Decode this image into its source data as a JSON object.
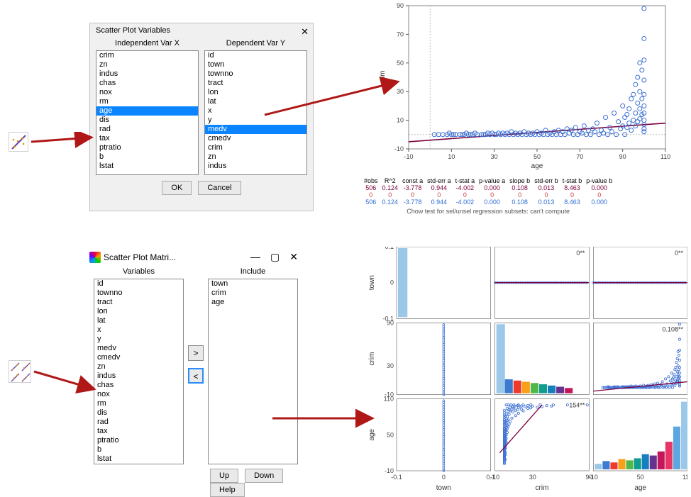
{
  "dialog1": {
    "title": "Scatter Plot Variables",
    "colX_label": "Independent Var X",
    "colY_label": "Dependent Var Y",
    "listX": [
      "crim",
      "zn",
      "indus",
      "chas",
      "nox",
      "rm",
      "age",
      "dis",
      "rad",
      "tax",
      "ptratio",
      "b",
      "lstat"
    ],
    "listX_selected": "age",
    "listY": [
      "id",
      "town",
      "townno",
      "tract",
      "lon",
      "lat",
      "x",
      "y",
      "medv",
      "cmedv",
      "crim",
      "zn",
      "indus"
    ],
    "listY_selected": "medv",
    "ok": "OK",
    "cancel": "Cancel"
  },
  "dialog2": {
    "title": "Scatter Plot Matri...",
    "colVars_label": "Variables",
    "colIncl_label": "Include",
    "listVars": [
      "id",
      "townno",
      "tract",
      "lon",
      "lat",
      "x",
      "y",
      "medv",
      "cmedv",
      "zn",
      "indus",
      "chas",
      "nox",
      "rm",
      "dis",
      "rad",
      "tax",
      "ptratio",
      "b",
      "lstat"
    ],
    "listIncl": [
      "town",
      "crim",
      "age"
    ],
    "btn_right": ">",
    "btn_left": "<",
    "btn_up": "Up",
    "btn_down": "Down",
    "btn_help": "Help"
  },
  "scatter": {
    "type": "scatter",
    "x_label": "age",
    "y_label": "crim",
    "xlim": [
      -10,
      110
    ],
    "ylim": [
      -10,
      90
    ],
    "xticks": [
      -10,
      10,
      30,
      50,
      70,
      90,
      110
    ],
    "yticks": [
      -10,
      10,
      30,
      50,
      70,
      90
    ],
    "marker_color": "#3b6fd4",
    "marker_size": 3,
    "line_color": "#7b003c",
    "line_start": [
      -10,
      -5
    ],
    "line_end": [
      110,
      8
    ],
    "axis_color": "#555555",
    "tick_fontsize": 9,
    "background": "#ffffff",
    "points": [
      [
        2,
        0
      ],
      [
        4,
        0
      ],
      [
        6,
        0
      ],
      [
        8,
        0
      ],
      [
        9,
        1
      ],
      [
        10,
        0
      ],
      [
        11,
        0
      ],
      [
        12,
        0
      ],
      [
        14,
        0
      ],
      [
        15,
        0
      ],
      [
        16,
        0
      ],
      [
        17,
        1
      ],
      [
        18,
        0
      ],
      [
        19,
        0
      ],
      [
        20,
        0
      ],
      [
        21,
        1
      ],
      [
        22,
        0
      ],
      [
        24,
        0
      ],
      [
        25,
        0
      ],
      [
        26,
        0
      ],
      [
        27,
        1
      ],
      [
        28,
        0
      ],
      [
        29,
        1
      ],
      [
        30,
        0
      ],
      [
        31,
        0
      ],
      [
        32,
        1
      ],
      [
        33,
        0
      ],
      [
        34,
        1
      ],
      [
        35,
        0
      ],
      [
        36,
        1
      ],
      [
        37,
        0
      ],
      [
        38,
        2
      ],
      [
        39,
        0
      ],
      [
        40,
        1
      ],
      [
        41,
        0
      ],
      [
        42,
        1
      ],
      [
        43,
        0
      ],
      [
        44,
        2
      ],
      [
        45,
        0
      ],
      [
        46,
        1
      ],
      [
        47,
        0
      ],
      [
        48,
        1
      ],
      [
        49,
        0
      ],
      [
        50,
        2
      ],
      [
        51,
        0
      ],
      [
        52,
        1
      ],
      [
        53,
        0
      ],
      [
        54,
        3
      ],
      [
        55,
        0
      ],
      [
        56,
        1
      ],
      [
        57,
        0
      ],
      [
        58,
        2
      ],
      [
        59,
        0
      ],
      [
        60,
        3
      ],
      [
        61,
        0
      ],
      [
        62,
        2
      ],
      [
        63,
        0
      ],
      [
        64,
        4
      ],
      [
        65,
        1
      ],
      [
        66,
        3
      ],
      [
        67,
        0
      ],
      [
        68,
        5
      ],
      [
        69,
        0
      ],
      [
        70,
        2
      ],
      [
        71,
        1
      ],
      [
        72,
        6
      ],
      [
        73,
        0
      ],
      [
        74,
        3
      ],
      [
        75,
        0
      ],
      [
        76,
        4
      ],
      [
        77,
        2
      ],
      [
        78,
        8
      ],
      [
        79,
        0
      ],
      [
        80,
        3
      ],
      [
        81,
        1
      ],
      [
        82,
        12
      ],
      [
        83,
        0
      ],
      [
        84,
        5
      ],
      [
        85,
        2
      ],
      [
        86,
        15
      ],
      [
        87,
        0
      ],
      [
        88,
        9
      ],
      [
        89,
        4
      ],
      [
        90,
        20
      ],
      [
        90,
        6
      ],
      [
        91,
        0
      ],
      [
        91,
        12
      ],
      [
        92,
        14
      ],
      [
        92,
        5
      ],
      [
        93,
        18
      ],
      [
        93,
        8
      ],
      [
        94,
        25
      ],
      [
        94,
        3
      ],
      [
        95,
        28
      ],
      [
        95,
        10
      ],
      [
        96,
        35
      ],
      [
        96,
        15
      ],
      [
        96,
        6
      ],
      [
        97,
        40
      ],
      [
        97,
        22
      ],
      [
        97,
        9
      ],
      [
        98,
        50
      ],
      [
        98,
        30
      ],
      [
        98,
        18
      ],
      [
        98,
        11
      ],
      [
        99,
        45
      ],
      [
        99,
        25
      ],
      [
        99,
        14
      ],
      [
        100,
        67
      ],
      [
        100,
        52
      ],
      [
        100,
        38
      ],
      [
        100,
        88
      ],
      [
        100,
        28
      ],
      [
        100,
        20
      ],
      [
        100,
        15
      ],
      [
        100,
        10
      ],
      [
        100,
        7
      ],
      [
        100,
        4
      ],
      [
        100,
        2
      ]
    ]
  },
  "stats": {
    "headers": [
      "#obs",
      "R^2",
      "const a",
      "std-err a",
      "t-stat a",
      "p-value a",
      "slope b",
      "std-err b",
      "t-stat b",
      "p-value b"
    ],
    "rows": [
      {
        "color": "#7b003c",
        "cells": [
          "506",
          "0.124",
          "-3.778",
          "0.944",
          "-4.002",
          "0.000",
          "0.108",
          "0.013",
          "8.463",
          "0.000"
        ]
      },
      {
        "color": "#d04040",
        "cells": [
          "0",
          "0",
          "0",
          "0",
          "0",
          "0",
          "0",
          "0",
          "0",
          "0"
        ]
      },
      {
        "color": "#2b6bd4",
        "cells": [
          "506",
          "0.124",
          "-3.778",
          "0.944",
          "-4.002",
          "0.000",
          "0.108",
          "0.013",
          "8.463",
          "0.000"
        ]
      }
    ],
    "chow_text": "Chow test for sel/unsel regression subsets: can't compute"
  },
  "matrix": {
    "vars": [
      "town",
      "crim",
      "age"
    ],
    "ranges": {
      "town": {
        "lim": [
          -0.1,
          0.1
        ],
        "ticks": [
          -0.1,
          0,
          0.1
        ]
      },
      "crim": {
        "lim": [
          -10,
          90
        ],
        "ticks": [
          -10,
          30,
          90
        ]
      },
      "age": {
        "lim": [
          -10,
          110
        ],
        "ticks": [
          -10,
          50,
          110
        ]
      }
    },
    "corr": {
      "town_crim": "0**",
      "town_age": "0**",
      "crim_age": "0.108**",
      "age_crim": "154**"
    },
    "marker_color": "#3b6fd4",
    "line_color": "#7b003c",
    "hist_colors": [
      "#9bc7e8",
      "#3c7bd0",
      "#ee3a2c",
      "#f7a11b",
      "#50b848",
      "#109c8e",
      "#167fbd",
      "#65338f",
      "#c2185b",
      "#e73568",
      "#5ea6e0"
    ],
    "axis_color": "#555555",
    "tick_fontsize": 9
  },
  "arrows": {
    "color": "#b01818"
  }
}
